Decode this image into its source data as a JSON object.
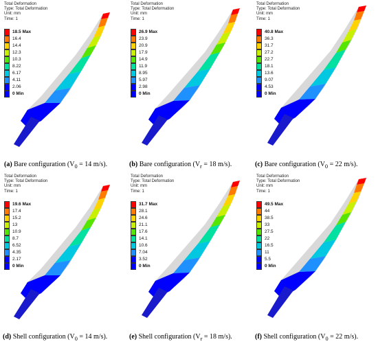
{
  "palette": [
    "#ff0000",
    "#ff7a00",
    "#ffd300",
    "#c8f000",
    "#55e500",
    "#00e0a0",
    "#00c8e0",
    "#1e90ff",
    "#0000ff"
  ],
  "panels": [
    {
      "header": [
        "Total Deformation",
        "Type: Total Deformation",
        "Unit: mm",
        "Time: 1"
      ],
      "legend": [
        "18.5 Max",
        "16.4",
        "14.4",
        "12.3",
        "10.3",
        "8.22",
        "6.17",
        "4.11",
        "2.06",
        "0 Min"
      ],
      "caption_label": "(a)",
      "caption_text": "Bare configuration (V",
      "caption_sub": "0",
      "caption_end": " = 14 m/s)."
    },
    {
      "header": [
        "Total Deformation",
        "Type: Total Deformation",
        "Unit: mm",
        "Time: 1"
      ],
      "legend": [
        "26.9 Max",
        "23.9",
        "20.9",
        "17.9",
        "14.9",
        "11.9",
        "8.95",
        "5.97",
        "2.98",
        "0 Min"
      ],
      "caption_label": "(b)",
      "caption_text": "Bare configuration (V",
      "caption_sub": "r",
      "caption_end": " = 18 m/s)."
    },
    {
      "header": [
        "Total Deformation",
        "Type: Total Deformation",
        "Unit: mm",
        "Time: 1"
      ],
      "legend": [
        "40.8 Max",
        "36.3",
        "31.7",
        "27.2",
        "22.7",
        "18.1",
        "13.6",
        "9.07",
        "4.53",
        "0 Min"
      ],
      "caption_label": "(c)",
      "caption_text": "Bare configuration (V",
      "caption_sub": "0",
      "caption_end": " = 22 m/s)."
    },
    {
      "header": [
        "Total Deformation",
        "Type: Total Deformation",
        "Unit: mm",
        "Time: 1"
      ],
      "legend": [
        "19.6 Max",
        "17.4",
        "15.2",
        "13",
        "10.9",
        "8.7",
        "6.52",
        "4.35",
        "2.17",
        "0 Min"
      ],
      "caption_label": "(d)",
      "caption_text": "Shell configuration (V",
      "caption_sub": "0",
      "caption_end": " = 14 m/s)."
    },
    {
      "header": [
        "Total Deformation",
        "Type: Total Deformation",
        "Unit: mm",
        "Time: 1"
      ],
      "legend": [
        "31.7 Max",
        "28.1",
        "24.6",
        "21.1",
        "17.6",
        "14.1",
        "10.6",
        "7.04",
        "3.52",
        "0 Min"
      ],
      "caption_label": "(e)",
      "caption_text": "Shell configuration (V",
      "caption_sub": "r",
      "caption_end": " = 18 m/s)."
    },
    {
      "header": [
        "Total Deformation",
        "Type: Total Deformation",
        "Unit: mm",
        "Time: 1"
      ],
      "legend": [
        "49.5 Max",
        "44",
        "38.5",
        "33",
        "27.5",
        "22",
        "16.5",
        "11",
        "5.5",
        "0 Min"
      ],
      "caption_label": "(f)",
      "caption_text": "Shell configuration (V",
      "caption_sub": "0",
      "caption_end": " = 22 m/s)."
    }
  ]
}
